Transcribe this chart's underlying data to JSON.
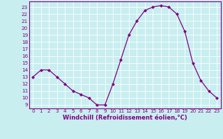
{
  "x": [
    0,
    1,
    2,
    3,
    4,
    5,
    6,
    7,
    8,
    9,
    10,
    11,
    12,
    13,
    14,
    15,
    16,
    17,
    18,
    19,
    20,
    21,
    22,
    23
  ],
  "y": [
    13,
    14,
    14,
    13,
    12,
    11,
    10.5,
    10,
    9,
    9,
    12,
    15.5,
    19,
    21,
    22.5,
    23,
    23.2,
    23,
    22,
    19.5,
    15,
    12.5,
    11,
    10
  ],
  "line_color": "#800080",
  "marker": "D",
  "marker_size": 2.0,
  "bg_color": "#c8eef0",
  "grid_color": "#ffffff",
  "xlabel": "Windchill (Refroidissement éolien,°C)",
  "ylim": [
    8.5,
    23.8
  ],
  "xlim": [
    -0.5,
    23.5
  ],
  "yticks": [
    9,
    10,
    11,
    12,
    13,
    14,
    15,
    16,
    17,
    18,
    19,
    20,
    21,
    22,
    23
  ],
  "xticks": [
    0,
    1,
    2,
    3,
    4,
    5,
    6,
    7,
    8,
    9,
    10,
    11,
    12,
    13,
    14,
    15,
    16,
    17,
    18,
    19,
    20,
    21,
    22,
    23
  ],
  "axis_color": "#800080",
  "tick_label_fontsize": 5.2,
  "xlabel_fontsize": 6.0,
  "linewidth": 0.9
}
